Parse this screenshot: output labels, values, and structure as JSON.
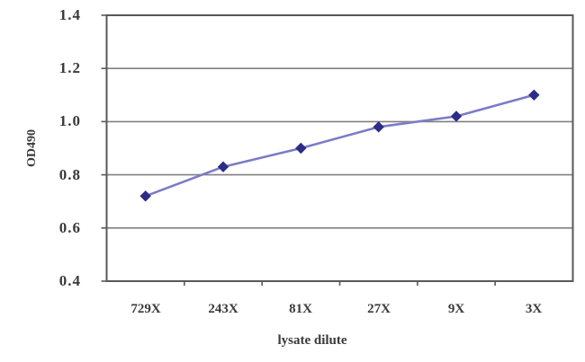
{
  "chart_data": {
    "type": "line",
    "title": "",
    "xlabel": "lysate dilute",
    "ylabel": "OD490",
    "categories": [
      "729X",
      "243X",
      "81X",
      "27X",
      "9X",
      "3X"
    ],
    "series": [
      {
        "name": "OD490",
        "values": [
          0.72,
          0.83,
          0.9,
          0.98,
          1.02,
          1.1
        ]
      }
    ],
    "ylim": [
      0.4,
      1.4
    ],
    "ytick_step": 0.2,
    "ytick_labels": [
      "0.4",
      "0.6",
      "0.8",
      "1.0",
      "1.2",
      "1.4"
    ],
    "grid": true,
    "legend_position": "none",
    "marker_shape": "diamond",
    "colors": {
      "line": "#7b7bc8",
      "marker": "#2d2d86",
      "grid": "#808080",
      "border": "#595959",
      "text": "#3a3a3a",
      "background": "#ffffff"
    }
  }
}
